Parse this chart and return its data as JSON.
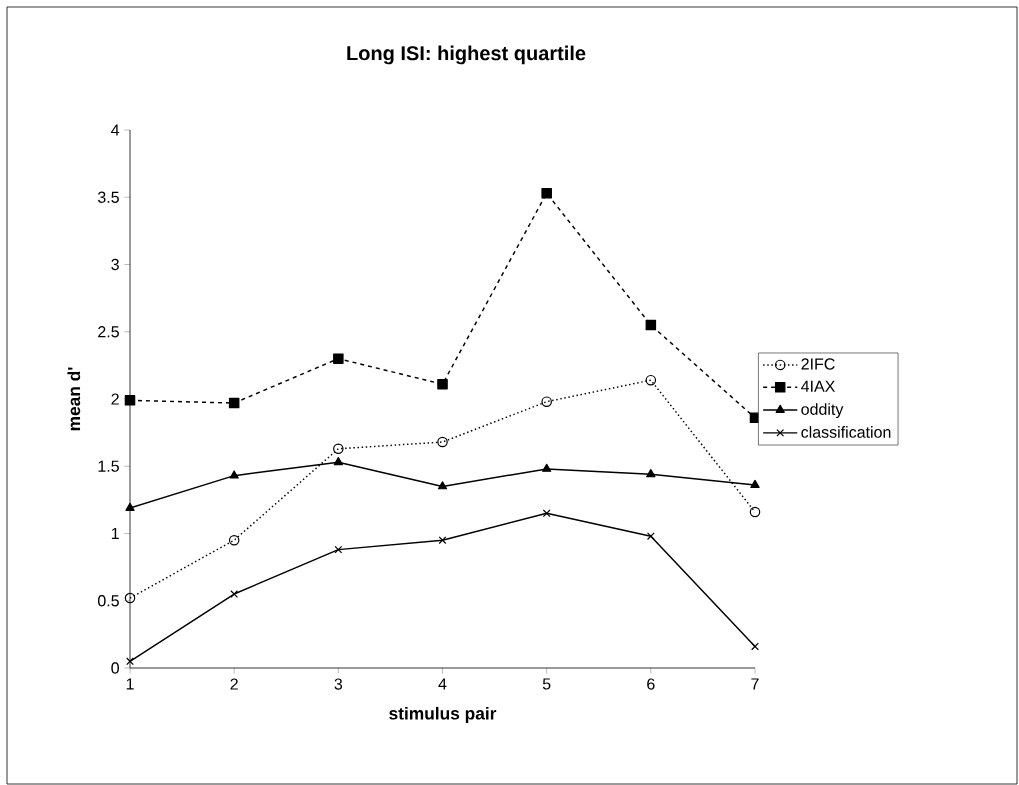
{
  "chart_data": {
    "type": "line",
    "title": "Long ISI: highest quartile",
    "xlabel": "stimulus pair",
    "ylabel": "mean d'",
    "categories": [
      "1",
      "2",
      "3",
      "4",
      "5",
      "6",
      "7"
    ],
    "series": [
      {
        "name": "2IFC",
        "color": "#000000",
        "marker": "circle",
        "line_style": "dotted",
        "values": [
          0.52,
          0.95,
          1.63,
          1.68,
          1.98,
          2.14,
          1.16
        ]
      },
      {
        "name": "4IAX",
        "color": "#000000",
        "marker": "square",
        "line_style": "dashed",
        "values": [
          1.99,
          1.97,
          2.3,
          2.11,
          3.53,
          2.55,
          1.86
        ]
      },
      {
        "name": "oddity",
        "color": "#000000",
        "marker": "triangle",
        "line_style": "solid",
        "values": [
          1.19,
          1.43,
          1.53,
          1.35,
          1.48,
          1.44,
          1.36
        ]
      },
      {
        "name": "classification",
        "color": "#000000",
        "marker": "cross",
        "line_style": "solid",
        "values": [
          0.05,
          0.55,
          0.88,
          0.95,
          1.15,
          0.98,
          0.16
        ]
      }
    ],
    "ylim": [
      0,
      4
    ],
    "yticks": [
      0,
      0.5,
      1,
      1.5,
      2,
      2.5,
      3,
      3.5,
      4
    ],
    "grid": false,
    "legend": "right"
  }
}
